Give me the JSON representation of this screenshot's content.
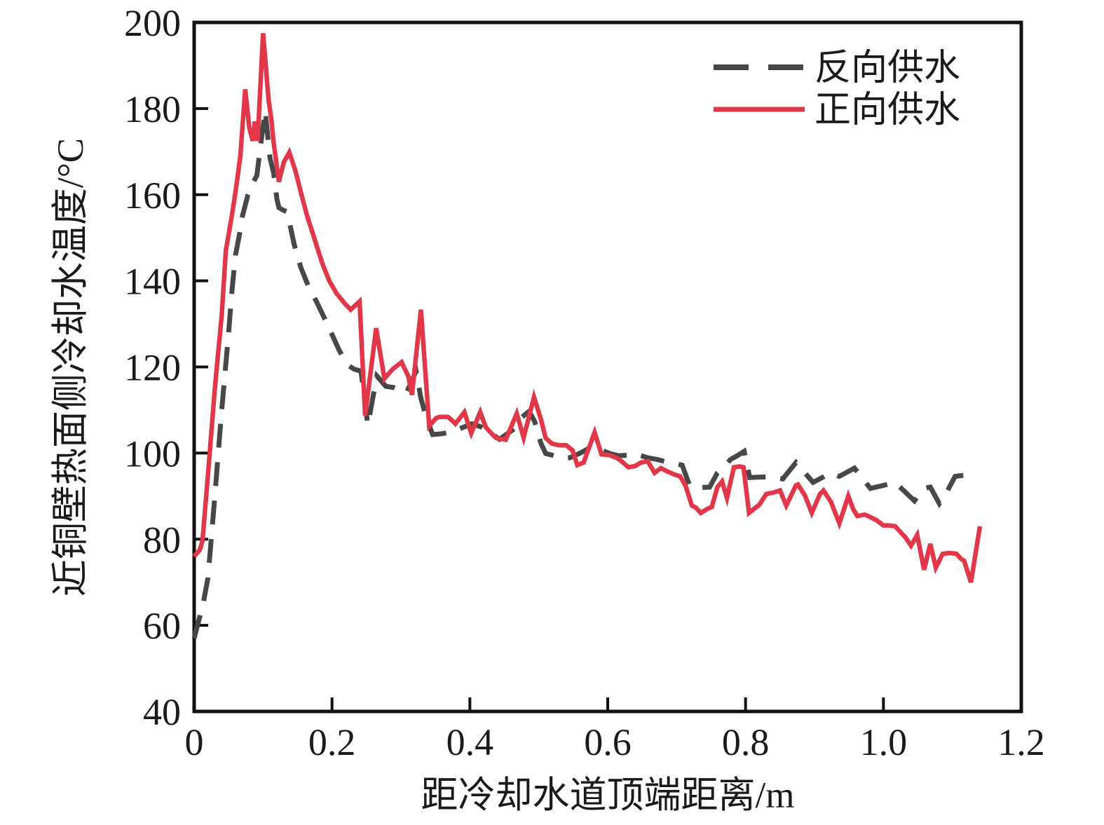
{
  "figure": {
    "ylabel": "近铜壁热面侧冷却水温度/°C",
    "xlabel": "距冷却水道顶端距离/m"
  },
  "legend": {
    "items": [
      {
        "label": "反向供水",
        "style": "dashed",
        "color": "#474747"
      },
      {
        "label": "正向供水",
        "style": "solid",
        "color": "#e23748"
      }
    ]
  },
  "chart_data": {
    "type": "line",
    "title": "",
    "xlabel": "距冷却水道顶端距离/m",
    "ylabel": "近铜壁热面侧冷却水温度/°C",
    "xlim": [
      0,
      1.2
    ],
    "ylim": [
      40,
      200
    ],
    "grid": false,
    "legend_position": "top-right-inside",
    "x_tick_labels": [
      "0",
      "0.2",
      "0.4",
      "0.6",
      "0.8",
      "1.0",
      "1.2"
    ],
    "x_tick_values": [
      0,
      0.2,
      0.4,
      0.6,
      0.8,
      1.0,
      1.2
    ],
    "y_tick_labels": [
      "40",
      "60",
      "80",
      "100",
      "120",
      "140",
      "160",
      "180",
      "200"
    ],
    "y_tick_values": [
      40,
      60,
      80,
      100,
      120,
      140,
      160,
      180,
      200
    ],
    "series": [
      {
        "name": "反向供水",
        "style": "dashed",
        "color": "#474747",
        "points": [
          [
            0.0,
            57.0
          ],
          [
            0.013,
            65.0
          ],
          [
            0.02,
            71.0
          ],
          [
            0.03,
            90.0
          ],
          [
            0.04,
            110.0
          ],
          [
            0.05,
            128.0
          ],
          [
            0.055,
            138.0
          ],
          [
            0.06,
            146.0
          ],
          [
            0.066,
            151.0
          ],
          [
            0.07,
            155.0
          ],
          [
            0.078,
            160.0
          ],
          [
            0.083,
            162.0
          ],
          [
            0.091,
            164.5
          ],
          [
            0.096,
            171.0
          ],
          [
            0.103,
            179.5
          ],
          [
            0.11,
            168.5
          ],
          [
            0.115,
            165.3
          ],
          [
            0.12,
            159.0
          ],
          [
            0.123,
            157.0
          ],
          [
            0.128,
            156.5
          ],
          [
            0.135,
            156.0
          ],
          [
            0.145,
            148.5
          ],
          [
            0.155,
            143.0
          ],
          [
            0.165,
            139.0
          ],
          [
            0.178,
            135.0
          ],
          [
            0.19,
            131.0
          ],
          [
            0.2,
            127.5
          ],
          [
            0.21,
            124.0
          ],
          [
            0.222,
            120.5
          ],
          [
            0.232,
            119.5
          ],
          [
            0.242,
            119.0
          ],
          [
            0.252,
            106.5
          ],
          [
            0.265,
            117.9
          ],
          [
            0.278,
            115.5
          ],
          [
            0.29,
            115.2
          ],
          [
            0.308,
            114.0
          ],
          [
            0.322,
            119.0
          ],
          [
            0.329,
            112.7
          ],
          [
            0.337,
            108.1
          ],
          [
            0.346,
            104.3
          ],
          [
            0.36,
            104.5
          ],
          [
            0.377,
            105.1
          ],
          [
            0.403,
            106.8
          ],
          [
            0.418,
            106.0
          ],
          [
            0.443,
            103.2
          ],
          [
            0.464,
            105.6
          ],
          [
            0.476,
            108.4
          ],
          [
            0.486,
            109.7
          ],
          [
            0.494,
            107.3
          ],
          [
            0.503,
            102.3
          ],
          [
            0.51,
            99.9
          ],
          [
            0.522,
            99.4
          ],
          [
            0.534,
            98.9
          ],
          [
            0.545,
            98.9
          ],
          [
            0.56,
            100.0
          ],
          [
            0.575,
            101.3
          ],
          [
            0.586,
            101.0
          ],
          [
            0.603,
            99.9
          ],
          [
            0.616,
            99.4
          ],
          [
            0.63,
            99.5
          ],
          [
            0.642,
            99.7
          ],
          [
            0.658,
            98.9
          ],
          [
            0.672,
            98.5
          ],
          [
            0.69,
            97.8
          ],
          [
            0.708,
            97.2
          ],
          [
            0.719,
            92.4
          ],
          [
            0.733,
            92.0
          ],
          [
            0.748,
            92.1
          ],
          [
            0.759,
            95.4
          ],
          [
            0.77,
            97.0
          ],
          [
            0.778,
            98.5
          ],
          [
            0.788,
            99.4
          ],
          [
            0.798,
            100.4
          ],
          [
            0.806,
            94.3
          ],
          [
            0.818,
            94.4
          ],
          [
            0.832,
            94.5
          ],
          [
            0.854,
            94.0
          ],
          [
            0.873,
            97.8
          ],
          [
            0.898,
            93.2
          ],
          [
            0.91,
            94.2
          ],
          [
            0.922,
            95.4
          ],
          [
            0.936,
            94.6
          ],
          [
            0.958,
            96.5
          ],
          [
            0.981,
            91.8
          ],
          [
            1.0,
            92.5
          ],
          [
            1.017,
            93.2
          ],
          [
            1.045,
            88.9
          ],
          [
            1.058,
            91.8
          ],
          [
            1.068,
            92.1
          ],
          [
            1.081,
            88.3
          ],
          [
            1.092,
            91.0
          ],
          [
            1.104,
            94.6
          ],
          [
            1.12,
            94.9
          ],
          [
            1.135,
            95.1
          ]
        ]
      },
      {
        "name": "正向供水",
        "style": "solid",
        "color": "#e23748",
        "points": [
          [
            0.0,
            76.0
          ],
          [
            0.008,
            77.5
          ],
          [
            0.012,
            79.5
          ],
          [
            0.02,
            95.0
          ],
          [
            0.03,
            115.0
          ],
          [
            0.04,
            132.0
          ],
          [
            0.046,
            147.0
          ],
          [
            0.054,
            154.5
          ],
          [
            0.058,
            158.5
          ],
          [
            0.062,
            163.0
          ],
          [
            0.067,
            169.0
          ],
          [
            0.074,
            184.5
          ],
          [
            0.08,
            175.5
          ],
          [
            0.085,
            172.5
          ],
          [
            0.088,
            177.0
          ],
          [
            0.092,
            172.5
          ],
          [
            0.1,
            197.5
          ],
          [
            0.108,
            182.0
          ],
          [
            0.112,
            177.5
          ],
          [
            0.115,
            172.5
          ],
          [
            0.123,
            163.0
          ],
          [
            0.13,
            167.5
          ],
          [
            0.138,
            169.8
          ],
          [
            0.147,
            165.5
          ],
          [
            0.156,
            159.8
          ],
          [
            0.164,
            155.0
          ],
          [
            0.176,
            149.0
          ],
          [
            0.186,
            144.0
          ],
          [
            0.196,
            140.0
          ],
          [
            0.207,
            137.0
          ],
          [
            0.217,
            135.0
          ],
          [
            0.227,
            133.3
          ],
          [
            0.24,
            135.2
          ],
          [
            0.248,
            108.7
          ],
          [
            0.264,
            129.0
          ],
          [
            0.276,
            117.3
          ],
          [
            0.288,
            119.5
          ],
          [
            0.301,
            121.1
          ],
          [
            0.311,
            117.7
          ],
          [
            0.316,
            113.5
          ],
          [
            0.329,
            133.3
          ],
          [
            0.341,
            106.3
          ],
          [
            0.351,
            108.1
          ],
          [
            0.356,
            108.4
          ],
          [
            0.368,
            108.4
          ],
          [
            0.374,
            107.6
          ],
          [
            0.379,
            106.8
          ],
          [
            0.392,
            109.5
          ],
          [
            0.402,
            104.6
          ],
          [
            0.415,
            109.5
          ],
          [
            0.423,
            106.0
          ],
          [
            0.43,
            104.8
          ],
          [
            0.438,
            103.5
          ],
          [
            0.452,
            103.1
          ],
          [
            0.468,
            109.2
          ],
          [
            0.478,
            103.6
          ],
          [
            0.493,
            113.0
          ],
          [
            0.503,
            107.9
          ],
          [
            0.51,
            103.5
          ],
          [
            0.519,
            102.2
          ],
          [
            0.53,
            101.8
          ],
          [
            0.54,
            101.8
          ],
          [
            0.549,
            100.6
          ],
          [
            0.556,
            97.2
          ],
          [
            0.565,
            97.8
          ],
          [
            0.581,
            104.8
          ],
          [
            0.591,
            99.7
          ],
          [
            0.603,
            99.5
          ],
          [
            0.611,
            99.0
          ],
          [
            0.617,
            98.5
          ],
          [
            0.63,
            96.7
          ],
          [
            0.64,
            97.0
          ],
          [
            0.648,
            97.8
          ],
          [
            0.658,
            98.1
          ],
          [
            0.668,
            95.4
          ],
          [
            0.677,
            96.5
          ],
          [
            0.687,
            95.7
          ],
          [
            0.697,
            95.0
          ],
          [
            0.705,
            94.6
          ],
          [
            0.713,
            92.4
          ],
          [
            0.722,
            87.8
          ],
          [
            0.728,
            87.3
          ],
          [
            0.735,
            86.1
          ],
          [
            0.744,
            87.0
          ],
          [
            0.751,
            87.5
          ],
          [
            0.759,
            92.1
          ],
          [
            0.766,
            93.4
          ],
          [
            0.773,
            89.6
          ],
          [
            0.783,
            96.7
          ],
          [
            0.791,
            96.9
          ],
          [
            0.797,
            96.7
          ],
          [
            0.805,
            86.1
          ],
          [
            0.812,
            87.0
          ],
          [
            0.82,
            88.0
          ],
          [
            0.83,
            90.5
          ],
          [
            0.84,
            90.8
          ],
          [
            0.85,
            91.3
          ],
          [
            0.859,
            87.8
          ],
          [
            0.873,
            92.5
          ],
          [
            0.876,
            92.7
          ],
          [
            0.886,
            90.2
          ],
          [
            0.896,
            86.1
          ],
          [
            0.908,
            90.5
          ],
          [
            0.913,
            91.3
          ],
          [
            0.924,
            88.6
          ],
          [
            0.936,
            83.7
          ],
          [
            0.949,
            90.0
          ],
          [
            0.956,
            87.0
          ],
          [
            0.962,
            85.4
          ],
          [
            0.973,
            85.7
          ],
          [
            0.98,
            85.2
          ],
          [
            0.99,
            84.4
          ],
          [
            1.0,
            83.2
          ],
          [
            1.008,
            83.2
          ],
          [
            1.017,
            83.0
          ],
          [
            1.032,
            80.4
          ],
          [
            1.04,
            78.5
          ],
          [
            1.049,
            81.0
          ],
          [
            1.059,
            72.9
          ],
          [
            1.068,
            78.9
          ],
          [
            1.076,
            73.4
          ],
          [
            1.086,
            76.6
          ],
          [
            1.096,
            76.8
          ],
          [
            1.106,
            76.6
          ],
          [
            1.112,
            75.5
          ],
          [
            1.117,
            75.0
          ],
          [
            1.127,
            70.0
          ],
          [
            1.14,
            83.0
          ]
        ]
      }
    ]
  }
}
